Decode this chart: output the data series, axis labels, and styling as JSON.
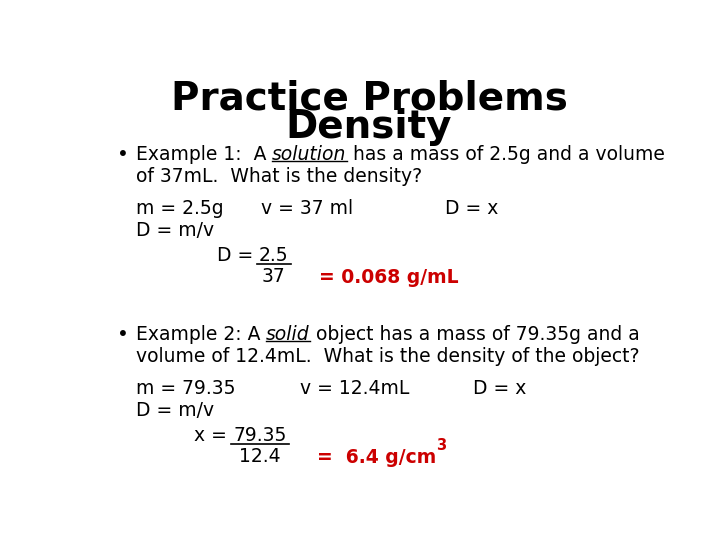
{
  "title_line1": "Practice Problems",
  "title_line2": "Density",
  "title_fontsize": 28,
  "background_color": "#ffffff",
  "text_color": "#000000",
  "red_color": "#cc0000",
  "body_fontsize": 13.5,
  "bullet1_pre": "Example 1:  A ",
  "bullet1_ul": "solution",
  "bullet1_post": " has a mass of 2.5g and a volume",
  "bullet1_line2": "of 37mL.  What is the density?",
  "ex1_col1": "m = 2.5g",
  "ex1_col2": "v = 37 ml",
  "ex1_col3": "D = x",
  "ex1_dmv": "D = m/v",
  "ex1_d_label": "D = ",
  "ex1_num": "2.5",
  "ex1_denom": "37",
  "ex1_answer": "= 0.068 g/mL",
  "bullet2_pre": "Example 2: A ",
  "bullet2_ul": "solid",
  "bullet2_post": " object has a mass of 79.35g and a",
  "bullet2_line2": "volume of 12.4mL.  What is the density of the object?",
  "ex2_col1": "m = 79.35",
  "ex2_col2": "v = 12.4mL",
  "ex2_col3": "D = x",
  "ex2_dmv": "D = m/v",
  "ex2_x_label": "x = ",
  "ex2_num": "79.35",
  "ex2_denom": "12.4",
  "ex2_answer": "=  6.4 g/cm",
  "ex2_super": "3"
}
